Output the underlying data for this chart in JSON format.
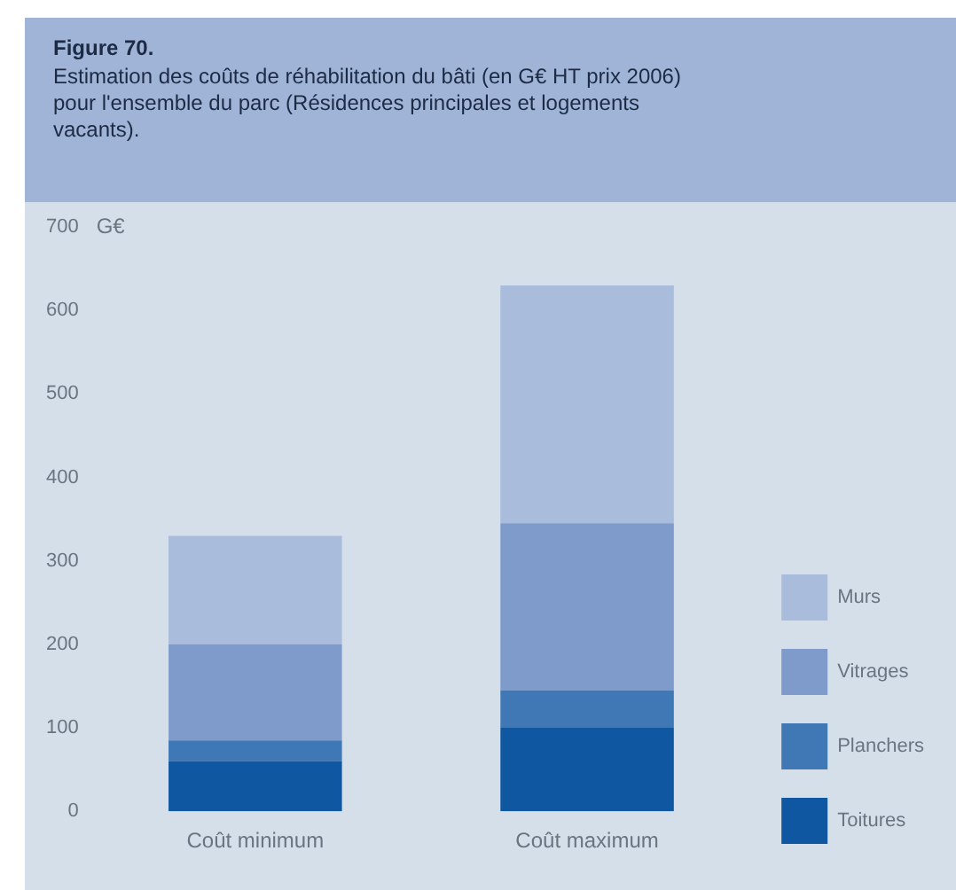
{
  "chart_data": {
    "type": "bar",
    "title": "Figure 70.",
    "subtitle": "Estimation des coûts de réhabilitation du bâti (en G€ HT prix 2006) pour l'ensemble du parc (Résidences principales et logements vacants).",
    "ylabel": "G€",
    "categories": [
      "Coût minimum",
      "Coût maximum"
    ],
    "stacked": true,
    "series": [
      {
        "name": "Toitures",
        "color": "#0f57a0",
        "values": [
          60,
          100
        ]
      },
      {
        "name": "Planchers",
        "color": "#3f78b4",
        "values": [
          25,
          45
        ]
      },
      {
        "name": "Vitrages",
        "color": "#7f9bcb",
        "values": [
          115,
          200
        ]
      },
      {
        "name": "Murs",
        "color": "#a9bcdc",
        "values": [
          130,
          285
        ]
      }
    ],
    "ylim": [
      0,
      700
    ],
    "yticks": [
      0,
      100,
      200,
      300,
      400,
      500,
      600,
      700
    ],
    "grid": false,
    "legend": "bottom right"
  }
}
